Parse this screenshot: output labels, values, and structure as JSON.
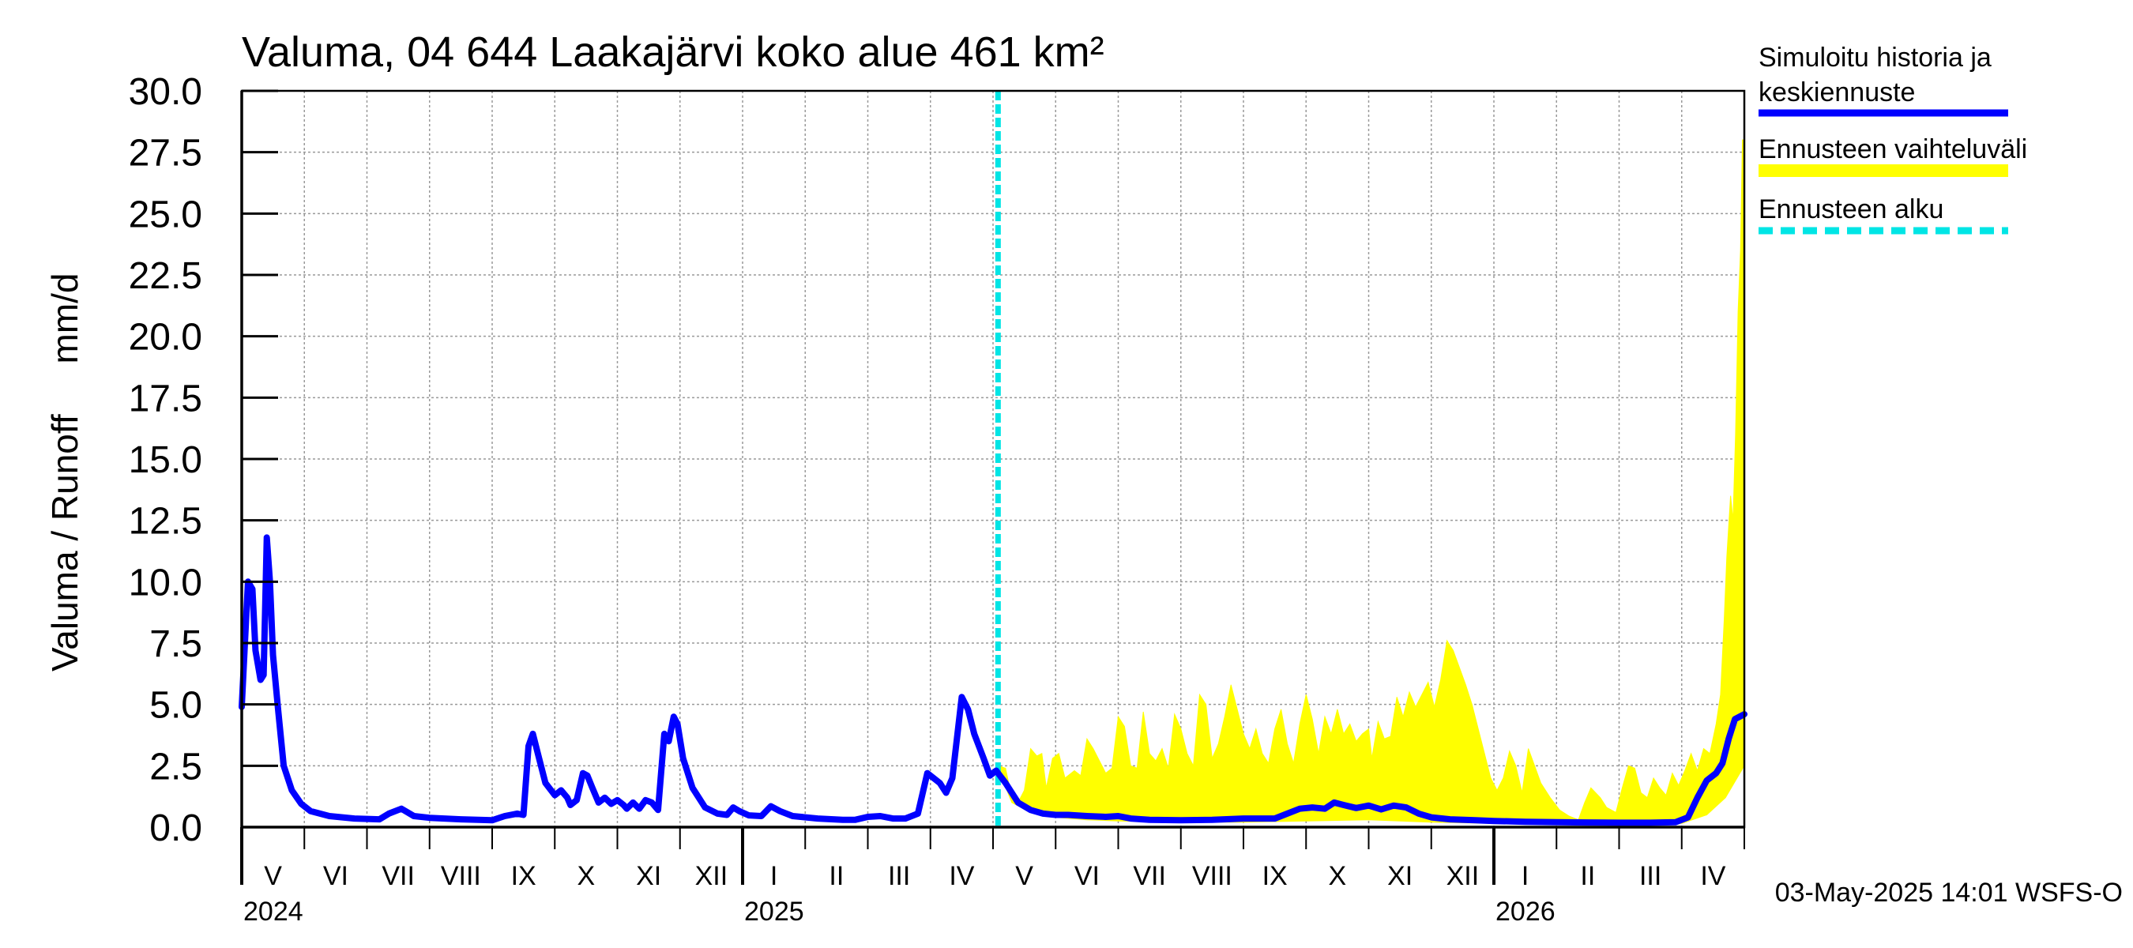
{
  "chart_data": {
    "type": "line",
    "title": "Valuma, 04 644 Laakajärvi koko alue 461 km²",
    "ylabel": "Valuma / Runoff     mm/d",
    "ylim": [
      0,
      30
    ],
    "yticks": [
      "0.0",
      "2.5",
      "5.0",
      "7.5",
      "10.0",
      "12.5",
      "15.0",
      "17.5",
      "20.0",
      "22.5",
      "25.0",
      "27.5",
      "30.0"
    ],
    "months": [
      "V",
      "VI",
      "VII",
      "VIII",
      "IX",
      "X",
      "XI",
      "XII",
      "I",
      "II",
      "III",
      "IV",
      "V",
      "VI",
      "VII",
      "VIII",
      "IX",
      "X",
      "XI",
      "XII",
      "I",
      "II",
      "III",
      "IV"
    ],
    "years": [
      "2024",
      "2025",
      "2026"
    ],
    "x_unit": "months since 2024-05-01",
    "x_range": [
      0,
      24
    ],
    "forecast_start_x": 12.08,
    "legend": {
      "position": "right",
      "entries": [
        {
          "label_line1": "Simuloitu historia ja",
          "label_line2": "keskiennuste",
          "color": "#0000ff",
          "style": "solid"
        },
        {
          "label_line1": "Ennusteen vaihteluväli",
          "label_line2": "",
          "color": "#ffff00",
          "style": "band"
        },
        {
          "label_line1": "Ennusteen alku",
          "label_line2": "",
          "color": "#00e5e5",
          "style": "dashed"
        }
      ]
    },
    "series": [
      {
        "name": "Simuloitu historia ja keskiennuste",
        "color": "#0000ff",
        "points": [
          [
            0.0,
            4.9
          ],
          [
            0.05,
            7.5
          ],
          [
            0.1,
            10.0
          ],
          [
            0.17,
            9.7
          ],
          [
            0.22,
            7.2
          ],
          [
            0.3,
            6.0
          ],
          [
            0.35,
            6.2
          ],
          [
            0.4,
            11.8
          ],
          [
            0.45,
            10.0
          ],
          [
            0.5,
            7.0
          ],
          [
            0.58,
            4.8
          ],
          [
            0.67,
            2.5
          ],
          [
            0.8,
            1.5
          ],
          [
            0.95,
            0.95
          ],
          [
            1.1,
            0.65
          ],
          [
            1.4,
            0.45
          ],
          [
            1.8,
            0.35
          ],
          [
            2.2,
            0.32
          ],
          [
            2.35,
            0.55
          ],
          [
            2.55,
            0.75
          ],
          [
            2.75,
            0.45
          ],
          [
            3.0,
            0.38
          ],
          [
            3.5,
            0.32
          ],
          [
            4.0,
            0.28
          ],
          [
            4.2,
            0.45
          ],
          [
            4.4,
            0.55
          ],
          [
            4.5,
            0.5
          ],
          [
            4.58,
            3.3
          ],
          [
            4.65,
            3.8
          ],
          [
            4.75,
            2.8
          ],
          [
            4.85,
            1.8
          ],
          [
            5.0,
            1.3
          ],
          [
            5.1,
            1.5
          ],
          [
            5.2,
            1.2
          ],
          [
            5.25,
            0.9
          ],
          [
            5.35,
            1.1
          ],
          [
            5.45,
            2.2
          ],
          [
            5.52,
            2.1
          ],
          [
            5.6,
            1.6
          ],
          [
            5.7,
            1.0
          ],
          [
            5.8,
            1.2
          ],
          [
            5.9,
            0.95
          ],
          [
            6.0,
            1.1
          ],
          [
            6.1,
            0.9
          ],
          [
            6.15,
            0.75
          ],
          [
            6.25,
            1.0
          ],
          [
            6.35,
            0.75
          ],
          [
            6.45,
            1.1
          ],
          [
            6.55,
            1.0
          ],
          [
            6.65,
            0.7
          ],
          [
            6.75,
            3.8
          ],
          [
            6.82,
            3.5
          ],
          [
            6.9,
            4.5
          ],
          [
            6.96,
            4.2
          ],
          [
            7.05,
            2.8
          ],
          [
            7.2,
            1.6
          ],
          [
            7.4,
            0.8
          ],
          [
            7.6,
            0.55
          ],
          [
            7.75,
            0.5
          ],
          [
            7.85,
            0.8
          ],
          [
            7.95,
            0.65
          ],
          [
            8.1,
            0.48
          ],
          [
            8.3,
            0.45
          ],
          [
            8.45,
            0.85
          ],
          [
            8.6,
            0.65
          ],
          [
            8.8,
            0.45
          ],
          [
            9.2,
            0.35
          ],
          [
            9.6,
            0.3
          ],
          [
            9.8,
            0.3
          ],
          [
            10.0,
            0.42
          ],
          [
            10.2,
            0.45
          ],
          [
            10.4,
            0.35
          ],
          [
            10.6,
            0.35
          ],
          [
            10.8,
            0.55
          ],
          [
            10.95,
            2.2
          ],
          [
            11.05,
            2.0
          ],
          [
            11.15,
            1.8
          ],
          [
            11.25,
            1.4
          ],
          [
            11.35,
            2.0
          ],
          [
            11.5,
            5.3
          ],
          [
            11.6,
            4.8
          ],
          [
            11.7,
            3.8
          ],
          [
            11.85,
            2.8
          ],
          [
            11.95,
            2.1
          ],
          [
            12.05,
            2.3
          ],
          [
            12.2,
            1.8
          ],
          [
            12.4,
            1.0
          ],
          [
            12.6,
            0.7
          ],
          [
            12.8,
            0.55
          ],
          [
            13.0,
            0.5
          ],
          [
            13.2,
            0.5
          ],
          [
            13.5,
            0.45
          ],
          [
            13.8,
            0.42
          ],
          [
            14.0,
            0.45
          ],
          [
            14.2,
            0.35
          ],
          [
            14.5,
            0.3
          ],
          [
            15.0,
            0.28
          ],
          [
            15.5,
            0.3
          ],
          [
            16.0,
            0.35
          ],
          [
            16.3,
            0.35
          ],
          [
            16.5,
            0.35
          ],
          [
            16.7,
            0.55
          ],
          [
            16.9,
            0.75
          ],
          [
            17.1,
            0.8
          ],
          [
            17.3,
            0.75
          ],
          [
            17.45,
            1.0
          ],
          [
            17.6,
            0.9
          ],
          [
            17.8,
            0.78
          ],
          [
            18.0,
            0.88
          ],
          [
            18.2,
            0.72
          ],
          [
            18.4,
            0.88
          ],
          [
            18.6,
            0.8
          ],
          [
            18.8,
            0.55
          ],
          [
            19.0,
            0.4
          ],
          [
            19.3,
            0.32
          ],
          [
            19.7,
            0.28
          ],
          [
            20.0,
            0.25
          ],
          [
            20.5,
            0.22
          ],
          [
            21.0,
            0.2
          ],
          [
            21.5,
            0.19
          ],
          [
            22.0,
            0.18
          ],
          [
            22.5,
            0.18
          ],
          [
            22.9,
            0.2
          ],
          [
            23.1,
            0.4
          ],
          [
            23.25,
            1.2
          ],
          [
            23.4,
            1.9
          ],
          [
            23.55,
            2.2
          ],
          [
            23.65,
            2.6
          ],
          [
            23.75,
            3.6
          ],
          [
            23.85,
            4.4
          ],
          [
            24.0,
            4.6
          ]
        ]
      },
      {
        "name": "Ennusteen vaihteluväli",
        "color": "#ffff00",
        "upper": [
          [
            12.08,
            2.5
          ],
          [
            12.2,
            2.4
          ],
          [
            12.3,
            1.2
          ],
          [
            12.4,
            1.0
          ],
          [
            12.5,
            1.5
          ],
          [
            12.6,
            3.2
          ],
          [
            12.7,
            2.9
          ],
          [
            12.78,
            3.0
          ],
          [
            12.85,
            1.6
          ],
          [
            12.95,
            2.8
          ],
          [
            13.05,
            3.0
          ],
          [
            13.15,
            2.0
          ],
          [
            13.3,
            2.3
          ],
          [
            13.4,
            2.1
          ],
          [
            13.5,
            3.6
          ],
          [
            13.6,
            3.2
          ],
          [
            13.7,
            2.7
          ],
          [
            13.8,
            2.2
          ],
          [
            13.9,
            2.4
          ],
          [
            14.0,
            4.5
          ],
          [
            14.1,
            4.1
          ],
          [
            14.2,
            2.5
          ],
          [
            14.3,
            2.4
          ],
          [
            14.4,
            4.7
          ],
          [
            14.5,
            3.0
          ],
          [
            14.6,
            2.7
          ],
          [
            14.7,
            3.2
          ],
          [
            14.8,
            2.4
          ],
          [
            14.9,
            4.6
          ],
          [
            15.0,
            4.0
          ],
          [
            15.1,
            3.0
          ],
          [
            15.2,
            2.5
          ],
          [
            15.3,
            5.4
          ],
          [
            15.4,
            5.0
          ],
          [
            15.5,
            2.8
          ],
          [
            15.6,
            3.4
          ],
          [
            15.7,
            4.5
          ],
          [
            15.8,
            5.8
          ],
          [
            15.9,
            4.8
          ],
          [
            16.0,
            3.8
          ],
          [
            16.1,
            3.2
          ],
          [
            16.2,
            4.0
          ],
          [
            16.3,
            3.0
          ],
          [
            16.4,
            2.6
          ],
          [
            16.5,
            4.0
          ],
          [
            16.6,
            4.8
          ],
          [
            16.7,
            3.4
          ],
          [
            16.8,
            2.6
          ],
          [
            16.9,
            4.2
          ],
          [
            17.0,
            5.4
          ],
          [
            17.1,
            4.4
          ],
          [
            17.2,
            3.0
          ],
          [
            17.3,
            4.5
          ],
          [
            17.4,
            3.8
          ],
          [
            17.5,
            4.8
          ],
          [
            17.6,
            3.8
          ],
          [
            17.7,
            4.2
          ],
          [
            17.8,
            3.5
          ],
          [
            17.9,
            3.8
          ],
          [
            18.0,
            4.0
          ],
          [
            18.05,
            2.8
          ],
          [
            18.15,
            4.3
          ],
          [
            18.25,
            3.6
          ],
          [
            18.35,
            3.7
          ],
          [
            18.45,
            5.3
          ],
          [
            18.55,
            4.5
          ],
          [
            18.65,
            5.5
          ],
          [
            18.75,
            4.9
          ],
          [
            18.85,
            5.4
          ],
          [
            18.95,
            5.9
          ],
          [
            19.05,
            4.9
          ],
          [
            19.15,
            6.0
          ],
          [
            19.25,
            7.6
          ],
          [
            19.35,
            7.2
          ],
          [
            19.45,
            6.5
          ],
          [
            19.55,
            5.8
          ],
          [
            19.65,
            5.0
          ],
          [
            19.75,
            4.0
          ],
          [
            19.85,
            3.0
          ],
          [
            19.95,
            2.0
          ],
          [
            20.05,
            1.5
          ],
          [
            20.15,
            2.0
          ],
          [
            20.25,
            3.1
          ],
          [
            20.35,
            2.5
          ],
          [
            20.45,
            1.4
          ],
          [
            20.55,
            3.2
          ],
          [
            20.65,
            2.5
          ],
          [
            20.75,
            1.8
          ],
          [
            20.9,
            1.2
          ],
          [
            21.05,
            0.7
          ],
          [
            21.2,
            0.45
          ],
          [
            21.35,
            0.3
          ],
          [
            21.45,
            1.0
          ],
          [
            21.55,
            1.6
          ],
          [
            21.7,
            1.2
          ],
          [
            21.8,
            0.8
          ],
          [
            21.95,
            0.6
          ],
          [
            22.05,
            1.6
          ],
          [
            22.15,
            2.5
          ],
          [
            22.25,
            2.4
          ],
          [
            22.35,
            1.4
          ],
          [
            22.45,
            1.2
          ],
          [
            22.55,
            2.0
          ],
          [
            22.65,
            1.6
          ],
          [
            22.75,
            1.3
          ],
          [
            22.85,
            2.2
          ],
          [
            22.95,
            1.7
          ],
          [
            23.05,
            2.3
          ],
          [
            23.15,
            3.0
          ],
          [
            23.25,
            2.3
          ],
          [
            23.35,
            3.2
          ],
          [
            23.45,
            3.0
          ],
          [
            23.55,
            4.2
          ],
          [
            23.62,
            5.4
          ],
          [
            23.68,
            8.5
          ],
          [
            23.72,
            11.0
          ],
          [
            23.78,
            13.5
          ],
          [
            23.82,
            12.5
          ],
          [
            23.86,
            16.0
          ],
          [
            23.9,
            21.0
          ],
          [
            23.94,
            23.5
          ],
          [
            23.97,
            28.0
          ],
          [
            24.0,
            28.0
          ]
        ],
        "lower": [
          [
            12.08,
            2.4
          ],
          [
            12.3,
            1.0
          ],
          [
            12.6,
            0.6
          ],
          [
            13.0,
            0.4
          ],
          [
            13.5,
            0.3
          ],
          [
            14.0,
            0.25
          ],
          [
            15.0,
            0.2
          ],
          [
            16.0,
            0.2
          ],
          [
            17.0,
            0.25
          ],
          [
            18.0,
            0.3
          ],
          [
            19.0,
            0.2
          ],
          [
            20.0,
            0.15
          ],
          [
            21.0,
            0.12
          ],
          [
            22.0,
            0.12
          ],
          [
            23.0,
            0.15
          ],
          [
            23.4,
            0.5
          ],
          [
            23.7,
            1.2
          ],
          [
            24.0,
            2.5
          ]
        ]
      }
    ],
    "footer_text": "03-May-2025 14:01 WSFS-O"
  }
}
